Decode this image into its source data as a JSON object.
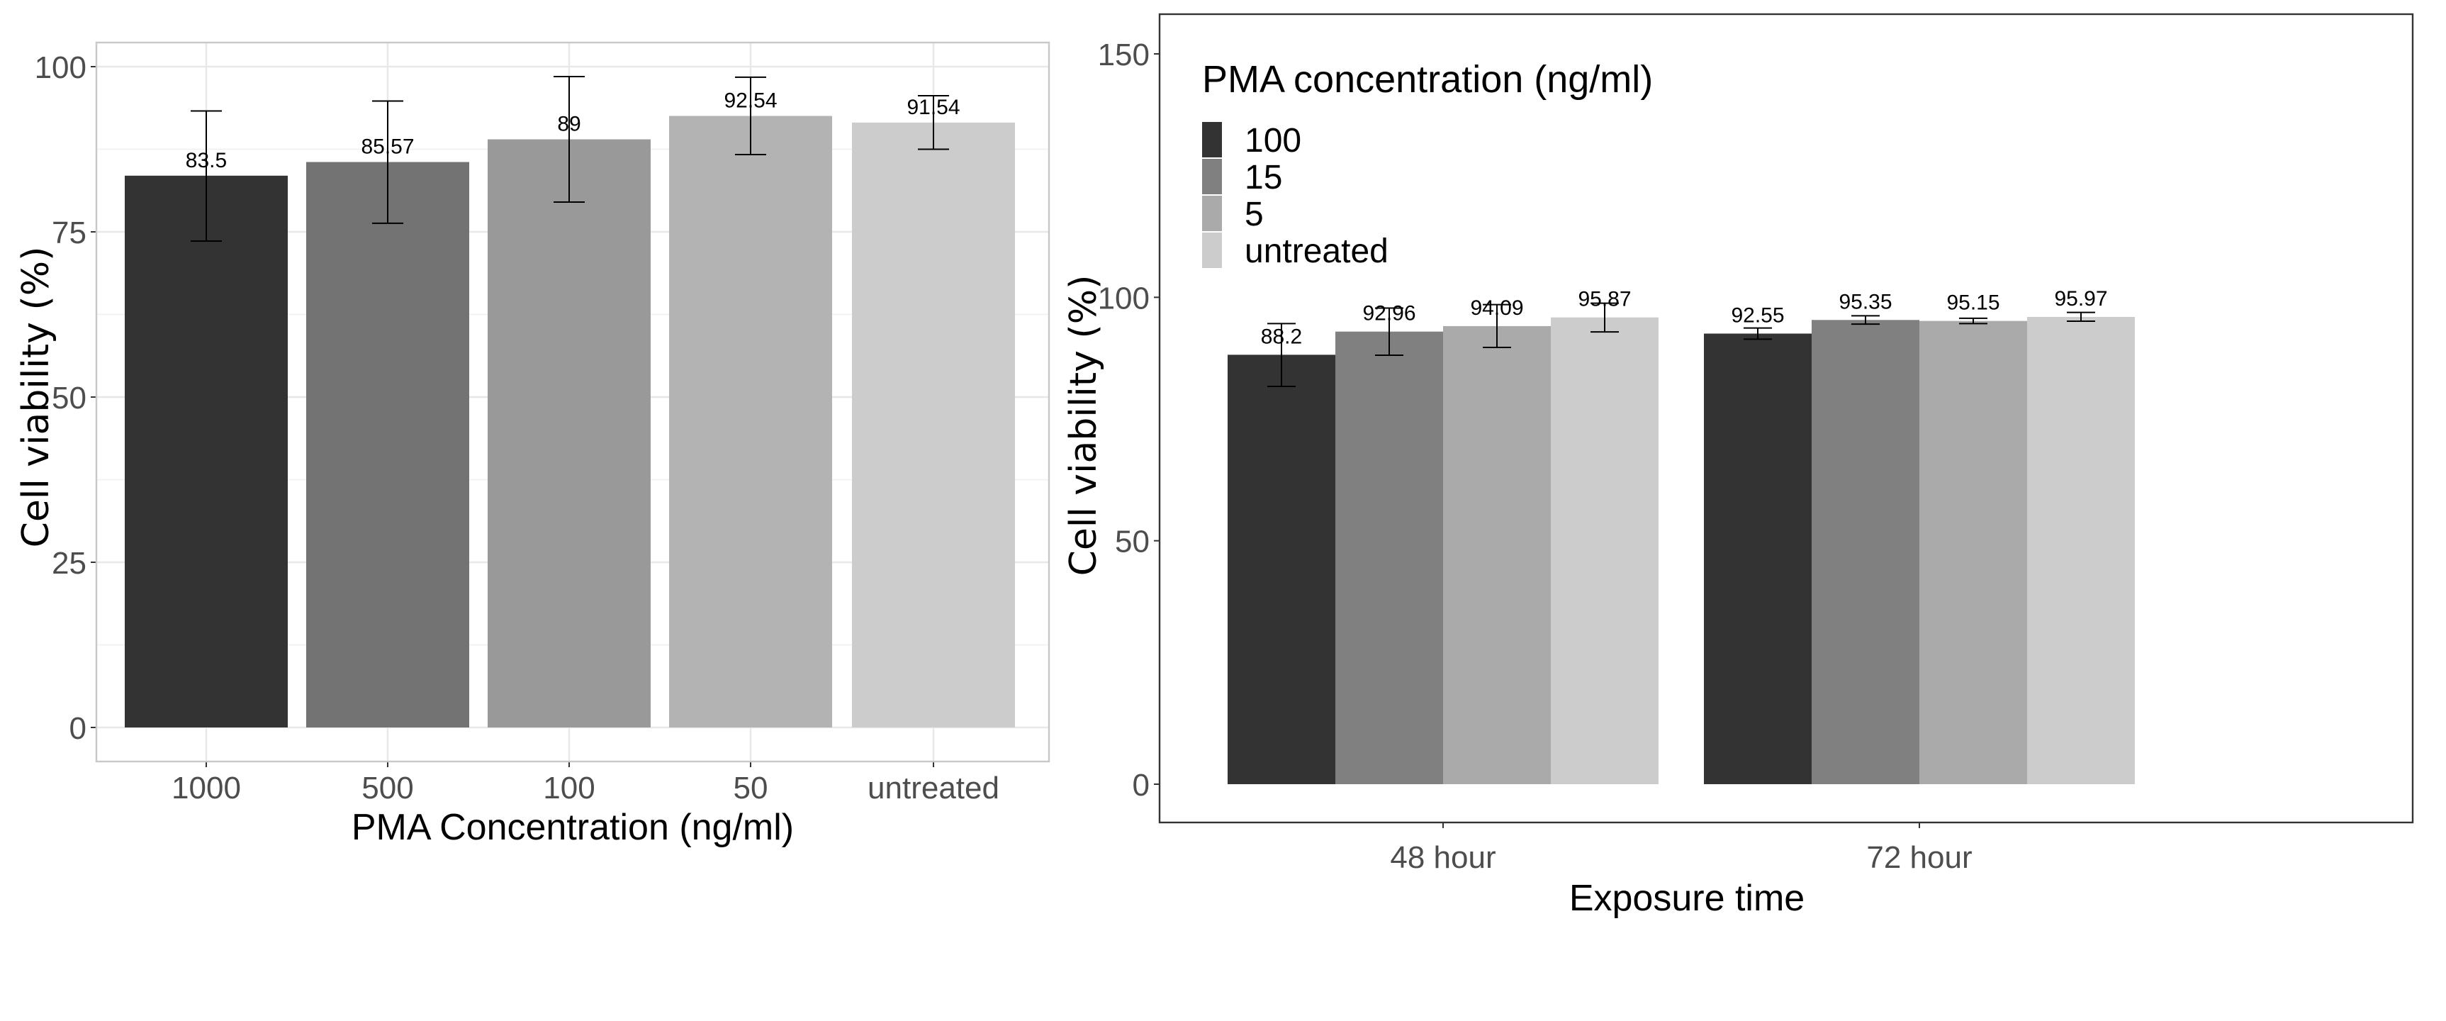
{
  "chart_data": [
    {
      "type": "bar",
      "title": "",
      "xlabel": "PMA Concentration (ng/ml)",
      "ylabel": "Cell viability (%)",
      "categories": [
        "1000",
        "500",
        "100",
        "50",
        "untreated"
      ],
      "values": [
        83.5,
        85.57,
        89,
        92.54,
        91.54
      ],
      "data_labels": [
        "83.5",
        "85.57",
        "89",
        "92.54",
        "91.54"
      ],
      "error_low": [
        73.6,
        76.3,
        79.5,
        86.7,
        87.5
      ],
      "error_high": [
        93.3,
        94.8,
        98.5,
        98.4,
        95.6
      ],
      "colors": [
        "#333333",
        "#737373",
        "#999999",
        "#b3b3b3",
        "#cccccc"
      ],
      "ylim": [
        -5,
        104
      ],
      "yticks": [
        "0",
        "25",
        "50",
        "75",
        "100"
      ],
      "grid": true
    },
    {
      "type": "bar",
      "title": "",
      "xlabel": "Exposure time",
      "ylabel": "Cell viability (%)",
      "categories": [
        "48 hour",
        "72 hour"
      ],
      "legend_title": "PMA concentration (ng/ml)",
      "legend_position": "top-left",
      "series": [
        {
          "name": "100",
          "color": "#333333",
          "values": [
            88.2,
            92.55
          ],
          "data_labels": [
            "88.2",
            "92.55"
          ],
          "error_low": [
            81.7,
            91.4
          ],
          "error_high": [
            94.6,
            93.7
          ]
        },
        {
          "name": "15",
          "color": "#808080",
          "values": [
            92.96,
            95.35
          ],
          "data_labels": [
            "92.96",
            "95.35"
          ],
          "error_low": [
            88.1,
            94.5
          ],
          "error_high": [
            97.8,
            96.2
          ]
        },
        {
          "name": "5",
          "color": "#aaaaaa",
          "values": [
            94.09,
            95.15
          ],
          "data_labels": [
            "94.09",
            "95.15"
          ],
          "error_low": [
            89.7,
            94.6
          ],
          "error_high": [
            98.5,
            95.7
          ]
        },
        {
          "name": "untreated",
          "color": "#cccccc",
          "values": [
            95.87,
            95.97
          ],
          "data_labels": [
            "95.87",
            "95.97"
          ],
          "error_low": [
            92.9,
            95.1
          ],
          "error_high": [
            98.8,
            96.9
          ]
        }
      ],
      "ylim": [
        -8,
        158
      ],
      "yticks": [
        "0",
        "50",
        "100",
        "150"
      ],
      "grid": false
    }
  ]
}
